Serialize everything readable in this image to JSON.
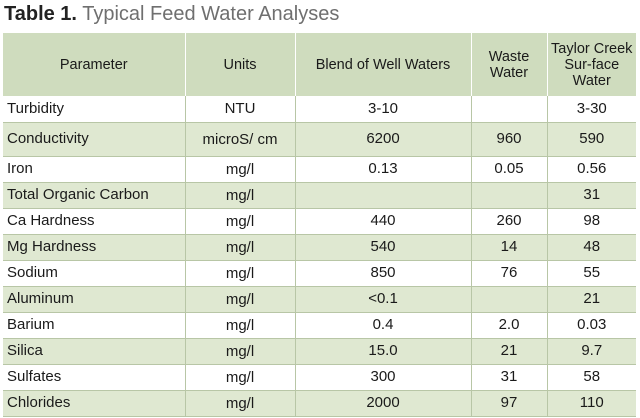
{
  "title": {
    "label": "Table 1.",
    "text": "Typical Feed Water Analyses"
  },
  "headers": [
    "Parameter",
    "Units",
    "Blend of Well Waters",
    "Waste Water",
    "Taylor Creek Sur-face Water"
  ],
  "rows": [
    [
      "Turbidity",
      "NTU",
      "3-10",
      "",
      "3-30"
    ],
    [
      "Conductivity",
      "microS/ cm",
      "6200",
      "960",
      "590"
    ],
    [
      "Iron",
      "mg/l",
      "0.13",
      "0.05",
      "0.56"
    ],
    [
      "Total Organic Carbon",
      "mg/l",
      "",
      "",
      "31"
    ],
    [
      "Ca Hardness",
      "mg/l",
      "440",
      "260",
      "98"
    ],
    [
      "Mg Hardness",
      "mg/l",
      "540",
      "14",
      "48"
    ],
    [
      "Sodium",
      "mg/l",
      "850",
      "76",
      "55"
    ],
    [
      "Aluminum",
      "mg/l",
      "<0.1",
      "",
      "21"
    ],
    [
      "Barium",
      "mg/l",
      "0.4",
      "2.0",
      "0.03"
    ],
    [
      "Silica",
      "mg/l",
      "15.0",
      "21",
      "9.7"
    ],
    [
      "Sulfates",
      "mg/l",
      "300",
      "31",
      "58"
    ],
    [
      "Chlorides",
      "mg/l",
      "2000",
      "97",
      "110"
    ]
  ],
  "colors": {
    "header_bg": "#cfdcbe",
    "stripe_bg": "#dfe8d1",
    "rule": "#b8c6a6"
  }
}
